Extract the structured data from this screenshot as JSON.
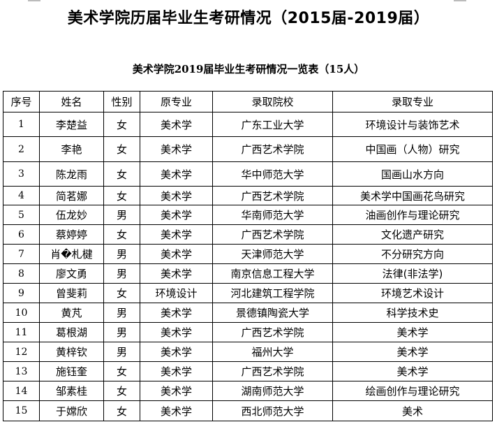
{
  "title": "美术学院历届毕业生考研情况（2015届-2019届）",
  "subtitle": "美术学院2019届毕业生考研情况一览表（15人）",
  "table": {
    "headers": [
      "序号",
      "姓名",
      "性别",
      "原专业",
      "录取院校",
      "录取专业"
    ],
    "rows": [
      [
        "1",
        "李楚益",
        "女",
        "美术学",
        "广东工业大学",
        "环境设计与装饰艺术"
      ],
      [
        "2",
        "李艳",
        "女",
        "美术学",
        "广西艺术学院",
        "中国画（人物）研究"
      ],
      [
        "3",
        "陈龙雨",
        "女",
        "美术学",
        "华中师范大学",
        "国画山水方向"
      ],
      [
        "4",
        "简茗娜",
        "女",
        "美术学",
        "广西艺术学院",
        "美术学中国画花鸟研究"
      ],
      [
        "5",
        "伍龙妙",
        "男",
        "美术学",
        "华南师范大学",
        "油画创作与理论研究"
      ],
      [
        "6",
        "蔡婷婷",
        "女",
        "美术学",
        "广西艺术学院",
        "文化遗产研究"
      ],
      [
        "7",
        "肖�札楗",
        "男",
        "美术学",
        "天津师范大学",
        "不分研究方向"
      ],
      [
        "8",
        "廖文勇",
        "男",
        "美术学",
        "南京信息工程大学",
        "法律(非法学)"
      ],
      [
        "9",
        "曾斐莉",
        "女",
        "环境设计",
        "河北建筑工程学院",
        "环境艺术设计"
      ],
      [
        "10",
        "黄芃",
        "男",
        "美术学",
        "景德镇陶瓷大学",
        "科学技术史"
      ],
      [
        "11",
        "葛根湖",
        "男",
        "美术学",
        "广西艺术学院",
        "美术学"
      ],
      [
        "12",
        "黄梓钦",
        "男",
        "美术学",
        "福州大学",
        "美术学"
      ],
      [
        "13",
        "施钰奎",
        "女",
        "美术学",
        "广西艺术学院",
        "美术学"
      ],
      [
        "14",
        "邹素桂",
        "女",
        "美术学",
        "湖南师范大学",
        "绘画创作与理论研究"
      ],
      [
        "15",
        "于嫦欣",
        "女",
        "美术学",
        "西北师范大学",
        "美术"
      ]
    ]
  }
}
